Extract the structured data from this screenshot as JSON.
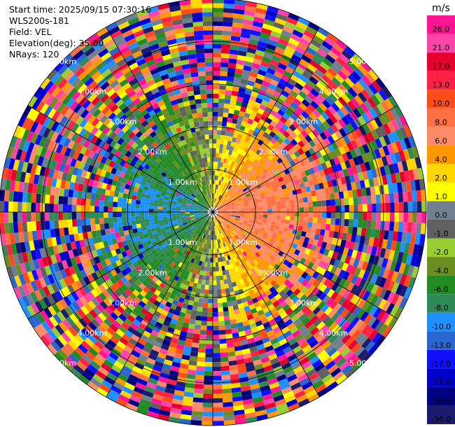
{
  "info": {
    "start_time": "Start time: 2025/09/15 07:30:16",
    "station": "WLS200s-181",
    "field": "Field: VEL",
    "elevation": "Elevation(deg): 35.00",
    "nrays": "NRays: 120"
  },
  "colorbar": {
    "unit": "m/s",
    "ticks": [
      "26.0",
      "21.0",
      "17.0",
      "13.0",
      "10.0",
      "8.0",
      "6.0",
      "4.0",
      "2.0",
      "1.0",
      "0.0",
      "-1.0",
      "-2.0",
      "-4.0",
      "-6.0",
      "-8.0",
      "-10.0",
      "-13.0",
      "-17.0",
      "-21.0",
      "-26.0",
      "-30.0"
    ],
    "colors": [
      "#ff1493",
      "#ff44a8",
      "#e6002e",
      "#ff2244",
      "#ff4a1a",
      "#ff7043",
      "#ff8c69",
      "#ff9800",
      "#ffd700",
      "#ffff00",
      "#708090",
      "#606060",
      "#9acd32",
      "#6b8e23",
      "#228b22",
      "#2e8b57",
      "#1e90ff",
      "#2a66d0",
      "#1010ff",
      "#0000cc",
      "#000080",
      "#1c1c6e"
    ]
  },
  "chart_data": {
    "type": "heatmap",
    "subtype": "PPI polar radial velocity",
    "field": "VEL",
    "unit": "m/s",
    "rings_km": [
      1.0,
      2.0,
      3.0,
      4.0,
      5.0
    ],
    "ring_labels": [
      "1.00km",
      "2.00km",
      "3.00km",
      "4.00km",
      "5.00km"
    ],
    "nrays": 120,
    "max_range_km": 5.0,
    "description_of_pattern": {
      "inner_east": "positive velocity (yellow/orange/red, 2 to 13 m/s)",
      "inner_west": "negative velocity (green/blue, -4 to -13 m/s)",
      "outer": "noisy mixed values"
    }
  }
}
